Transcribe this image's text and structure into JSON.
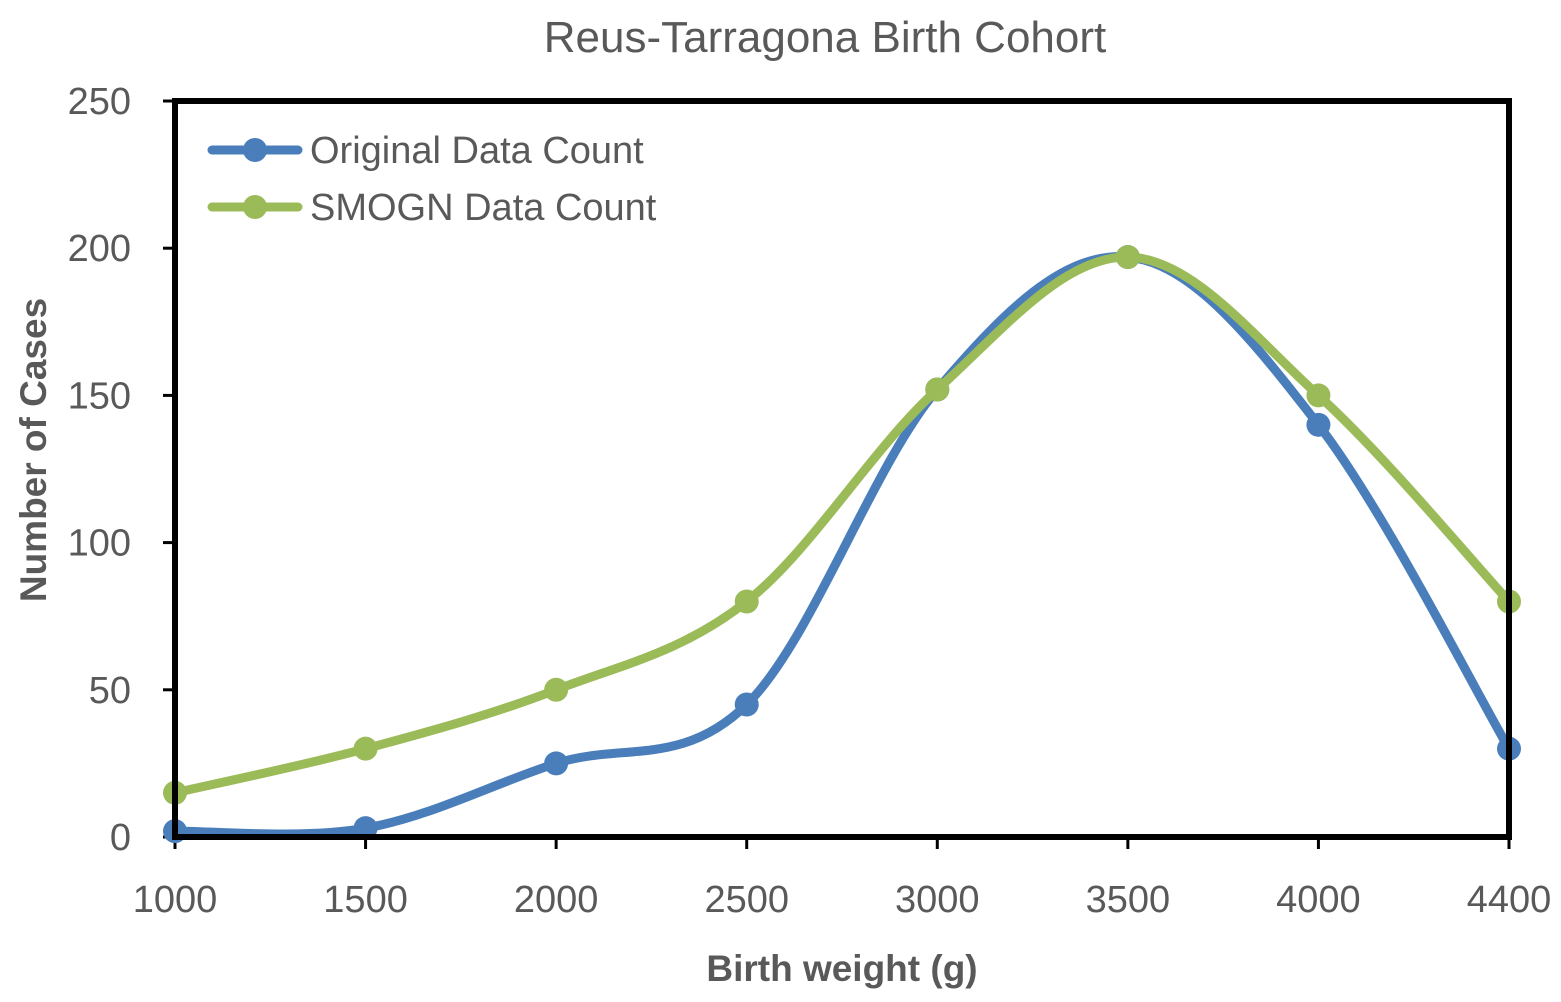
{
  "chart_data": {
    "type": "line",
    "title": "Reus-Tarragona Birth Cohort",
    "xlabel": "Birth weight (g)",
    "ylabel": "Number of Cases",
    "categories": [
      "1000",
      "1500",
      "2000",
      "2500",
      "3000",
      "3500",
      "4000",
      "4400"
    ],
    "ylim": [
      0,
      250
    ],
    "yticks": [
      "0",
      "50",
      "100",
      "150",
      "200",
      "250"
    ],
    "grid": false,
    "legend_position": "top-left",
    "series": [
      {
        "name": "Original Data Count",
        "color": "#4a7ebb",
        "values": [
          2,
          3,
          25,
          45,
          152,
          197,
          140,
          30
        ]
      },
      {
        "name": "SMOGN Data Count",
        "color": "#9bbb59",
        "values": [
          15,
          30,
          50,
          80,
          152,
          197,
          150,
          80
        ]
      }
    ]
  }
}
